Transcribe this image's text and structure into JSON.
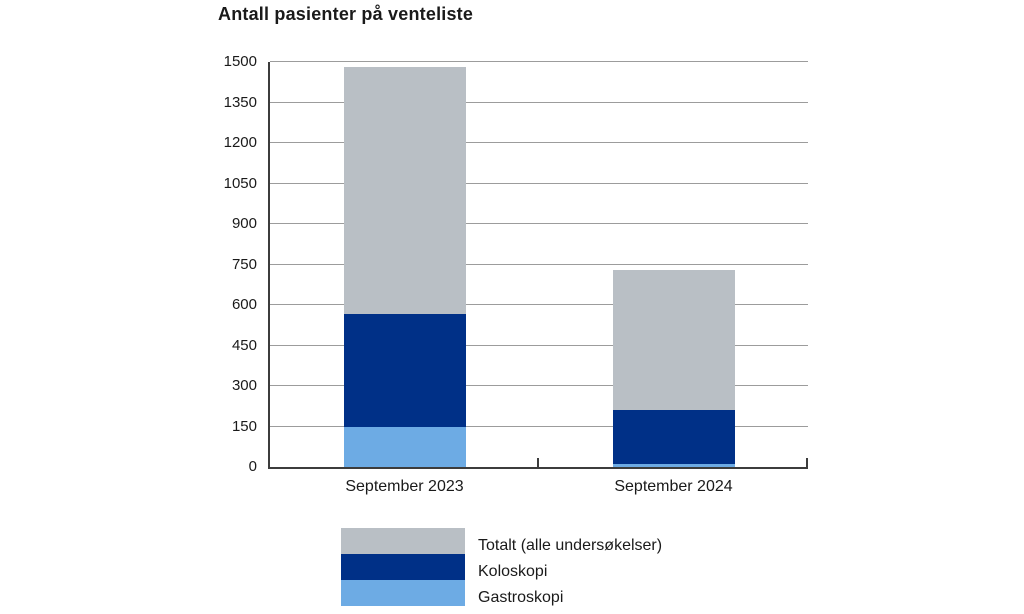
{
  "page": {
    "background": "#ffffff"
  },
  "chart_data": {
    "type": "bar",
    "stacked": true,
    "title": "Antall pasienter på venteliste",
    "categories": [
      "September 2023",
      "September 2024"
    ],
    "series": [
      {
        "name": "Gastroskopi",
        "color": "#6dabe4",
        "values": [
          150,
          10
        ]
      },
      {
        "name": "Koloskopi",
        "color": "#003087",
        "values": [
          415,
          200
        ]
      },
      {
        "name": "Totalt (alle undersøkelser)",
        "color": "#b9bfc5",
        "values": [
          915,
          520
        ]
      }
    ],
    "stack_totals": [
      1480,
      730
    ],
    "ylim": [
      0,
      1500
    ],
    "yticks": [
      0,
      150,
      300,
      450,
      600,
      750,
      900,
      1050,
      1200,
      1350,
      1500
    ],
    "grid": true,
    "axis_color": "#3c3c3c",
    "gridline_color": "#9c9c9c",
    "legend": {
      "position": "bottom",
      "entries": [
        {
          "label": "Totalt (alle undersøkelser)",
          "color": "#b9bfc5"
        },
        {
          "label": "Koloskopi",
          "color": "#003087"
        },
        {
          "label": "Gastroskopi",
          "color": "#6dabe4"
        }
      ]
    }
  }
}
